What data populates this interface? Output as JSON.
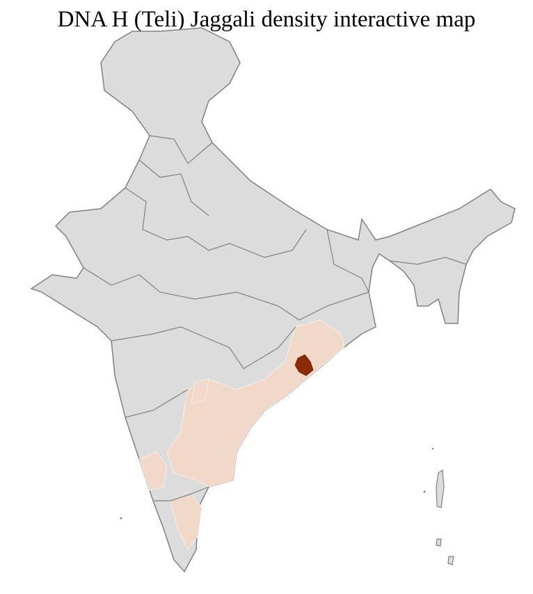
{
  "title": "DNA H (Teli) Jaggali density interactive map",
  "map": {
    "region": "India districts",
    "colors": {
      "base_fill": "#dcdcdc",
      "district_border": "#ffffff",
      "state_border": "#808080",
      "low_density": "#f2d8c8",
      "high_density": "#8b2a05"
    }
  }
}
